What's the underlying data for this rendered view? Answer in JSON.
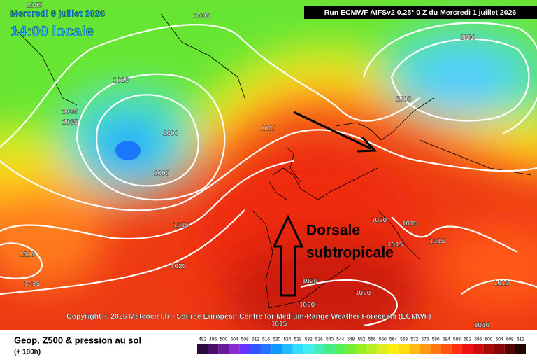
{
  "header": {
    "date": "Mercredi 8 juillet 2026",
    "time": "14:00 locale",
    "run": "Run ECMWF AIFSv2 0.25° 0 Z du Mercredi 1 juillet 2026"
  },
  "annotation": [
    "Dorsale",
    "subtropicale"
  ],
  "copyright": "Copyright © 2026 Meteociel.fr - Source European Centre for Medium-Range Weather Forecasts (ECMWF)",
  "isobars": [
    "1005",
    "1005",
    "1010",
    "1005",
    "1005",
    "1000",
    "1005",
    "1010",
    "1000",
    "1005",
    "1015",
    "1010",
    "1015",
    "1020",
    "1020",
    "1015",
    "1015",
    "1015",
    "1020",
    "1020",
    "1010",
    "1010",
    "1020",
    "1015"
  ],
  "footer": {
    "title": "Geop. Z500 & pression au sol",
    "lead": "(+ 180h)"
  },
  "legend": {
    "labels": [
      "492",
      "496",
      "500",
      "504",
      "508",
      "512",
      "516",
      "520",
      "524",
      "528",
      "532",
      "536",
      "540",
      "544",
      "548",
      "552",
      "556",
      "560",
      "564",
      "568",
      "572",
      "576",
      "580",
      "584",
      "588",
      "592",
      "596",
      "600",
      "604",
      "608",
      "612"
    ],
    "colors": [
      "#2a0a3a",
      "#4a0f66",
      "#6a1a99",
      "#8a2ad0",
      "#6633ff",
      "#3355ff",
      "#2277ff",
      "#1199ff",
      "#22bbff",
      "#33ddff",
      "#44eeee",
      "#44eebb",
      "#44ee88",
      "#55ee55",
      "#77ee33",
      "#99ee22",
      "#bbee22",
      "#ddee22",
      "#ffee11",
      "#ffdd11",
      "#ffbb11",
      "#ff9911",
      "#ff7711",
      "#ff5511",
      "#ff3311",
      "#ee1111",
      "#cc0a0a",
      "#aa0808",
      "#880606",
      "#550404",
      "#220202"
    ]
  }
}
